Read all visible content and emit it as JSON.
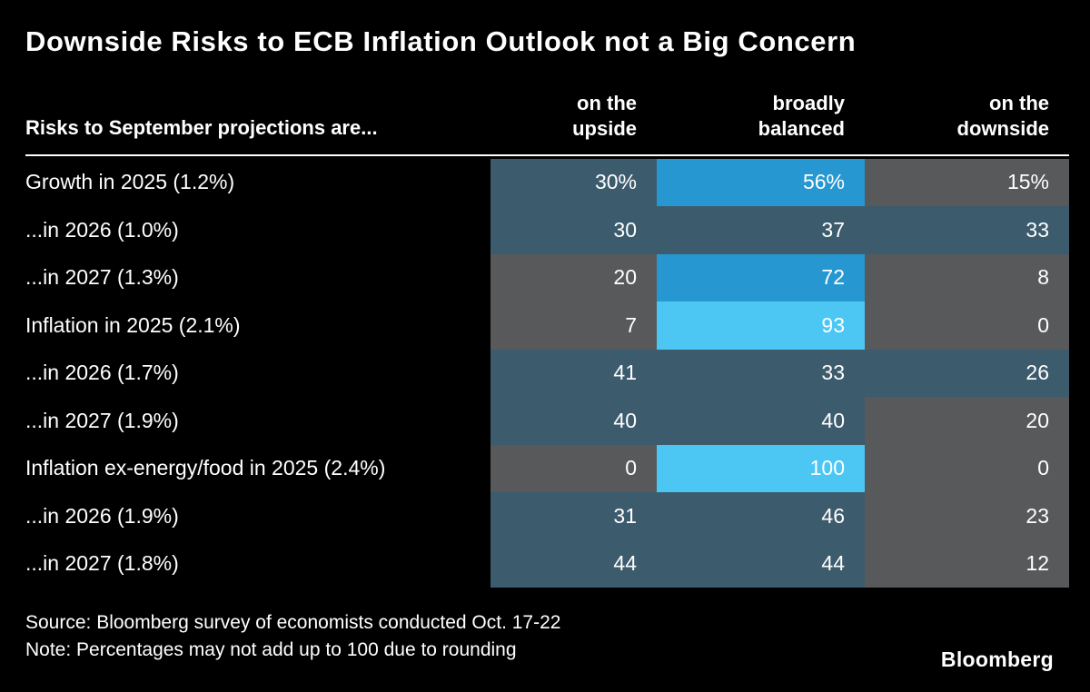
{
  "colors": {
    "background": "#000000",
    "text": "#ffffff",
    "divider": "#ffffff",
    "heat_low_gray": "#58595b",
    "heat_mid_teal": "#3c5b6d",
    "heat_high_blue": "#2697d0",
    "heat_max_cyan": "#4cc7f4"
  },
  "chart_data": {
    "type": "heatmap",
    "title": "Downside Risks to ECB Inflation Outlook not a Big Concern",
    "row_header": "Risks to September projections are...",
    "columns": [
      {
        "line1": "on the",
        "line2": "upside"
      },
      {
        "line1": "broadly",
        "line2": "balanced"
      },
      {
        "line1": "on the",
        "line2": "downside"
      }
    ],
    "rows": [
      {
        "label": "Growth in 2025 (1.2%)",
        "values": [
          30,
          56,
          15
        ],
        "display": [
          "30%",
          "56%",
          "15%"
        ]
      },
      {
        "label": "...in 2026 (1.0%)",
        "values": [
          30,
          37,
          33
        ],
        "display": [
          "30",
          "37",
          "33"
        ]
      },
      {
        "label": "...in 2027 (1.3%)",
        "values": [
          20,
          72,
          8
        ],
        "display": [
          "20",
          "72",
          "8"
        ]
      },
      {
        "label": "Inflation in 2025 (2.1%)",
        "values": [
          7,
          93,
          0
        ],
        "display": [
          "7",
          "93",
          "0"
        ]
      },
      {
        "label": "...in 2026 (1.7%)",
        "values": [
          41,
          33,
          26
        ],
        "display": [
          "41",
          "33",
          "26"
        ]
      },
      {
        "label": "...in 2027 (1.9%)",
        "values": [
          40,
          40,
          20
        ],
        "display": [
          "40",
          "40",
          "20"
        ]
      },
      {
        "label": "Inflation ex-energy/food in 2025 (2.4%)",
        "values": [
          0,
          100,
          0
        ],
        "display": [
          "0",
          "100",
          "0"
        ]
      },
      {
        "label": "...in 2026 (1.9%)",
        "values": [
          31,
          46,
          23
        ],
        "display": [
          "31",
          "46",
          "23"
        ]
      },
      {
        "label": "...in 2027 (1.8%)",
        "values": [
          44,
          44,
          12
        ],
        "display": [
          "44",
          "44",
          "12"
        ]
      }
    ],
    "color_scale": [
      {
        "max": 25,
        "color": "#58595b"
      },
      {
        "max": 50,
        "color": "#3c5b6d"
      },
      {
        "max": 79,
        "color": "#2697d0"
      },
      {
        "max": 100,
        "color": "#4cc7f4"
      }
    ],
    "legend_position": "none",
    "grid": false
  },
  "footer": {
    "source": "Source: Bloomberg survey of economists conducted Oct. 17-22",
    "note": "Note: Percentages may not add up to 100 due to rounding",
    "brand": "Bloomberg"
  }
}
